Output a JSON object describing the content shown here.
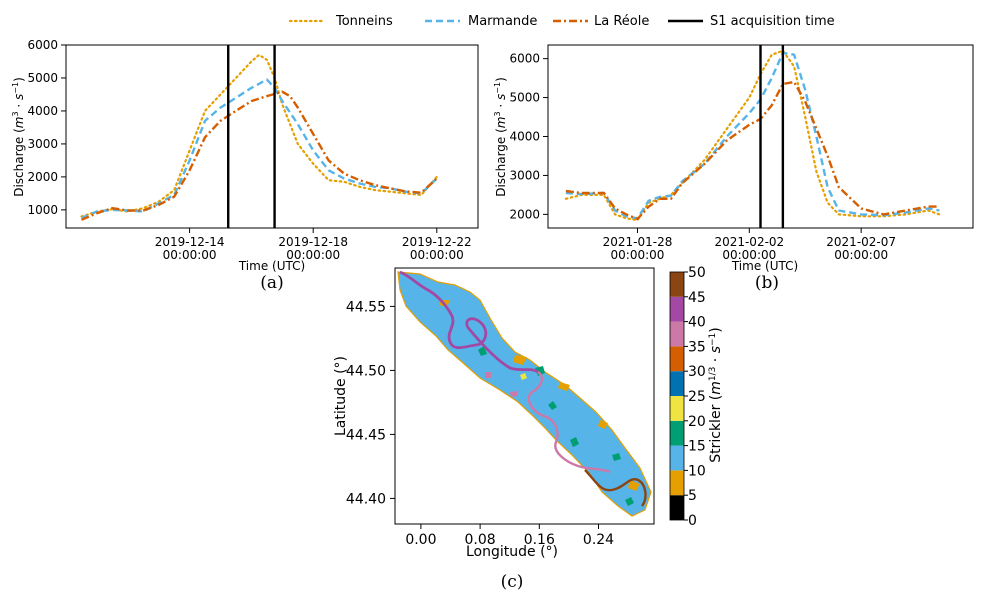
{
  "legend": {
    "entries": [
      {
        "label": "Tonneins",
        "color": "#E69F00",
        "style": "dotted"
      },
      {
        "label": "Marmande",
        "color": "#56B4E9",
        "style": "dashed"
      },
      {
        "label": "La Réole",
        "color": "#D55E00",
        "style": "dashdot"
      },
      {
        "label": "S1 acquisition time",
        "color": "#000000",
        "style": "solid"
      }
    ]
  },
  "chart_data": [
    {
      "type": "line",
      "panel_label": "(a)",
      "xlabel": "Time (UTC)",
      "ylabel": "Discharge (m³ · s⁻¹)",
      "x_ticks": [
        {
          "date": "2019-12-14",
          "time": "00:00:00",
          "day": 4
        },
        {
          "date": "2019-12-18",
          "time": "00:00:00",
          "day": 8
        },
        {
          "date": "2019-12-22",
          "time": "00:00:00",
          "day": 12
        }
      ],
      "xlim": [
        "2019-12-10 00:00",
        "2019-12-23 08:00"
      ],
      "ylim": [
        450,
        6000
      ],
      "y_ticks": [
        1000,
        2000,
        3000,
        4000,
        5000,
        6000
      ],
      "vlines": [
        "2019-12-15 06:00",
        "2019-12-16 18:00"
      ],
      "series": [
        {
          "name": "Tonneins",
          "x": [
            0.5,
            1,
            1.5,
            2,
            2.5,
            3,
            3.5,
            4,
            4.5,
            5,
            5.5,
            6,
            6.25,
            6.5,
            6.75,
            7,
            7.25,
            7.5,
            8,
            8.5,
            9,
            9.5,
            10,
            10.5,
            11,
            11.5,
            12
          ],
          "y": [
            800,
            950,
            1020,
            950,
            1050,
            1250,
            1600,
            2800,
            4000,
            4500,
            5000,
            5500,
            5700,
            5550,
            5000,
            4200,
            3600,
            3000,
            2400,
            1900,
            1850,
            1700,
            1600,
            1550,
            1500,
            1450,
            2000
          ]
        },
        {
          "name": "Marmande",
          "x": [
            0.5,
            1,
            1.5,
            2,
            2.5,
            3,
            3.5,
            4,
            4.5,
            5,
            5.5,
            6,
            6.5,
            6.75,
            7,
            7.5,
            8,
            8.5,
            9,
            9.5,
            10,
            10.5,
            11,
            11.5,
            12
          ],
          "y": [
            750,
            950,
            1000,
            980,
            950,
            1200,
            1450,
            2500,
            3700,
            4100,
            4400,
            4700,
            4950,
            4700,
            4300,
            3600,
            2800,
            2200,
            1950,
            1800,
            1700,
            1650,
            1550,
            1500,
            1950
          ]
        },
        {
          "name": "La Réole",
          "x": [
            0.5,
            1,
            1.5,
            2,
            2.5,
            3,
            3.5,
            4,
            4.5,
            5,
            5.5,
            6,
            6.5,
            7,
            7.25,
            7.5,
            8,
            8.5,
            9,
            9.5,
            10,
            10.5,
            11,
            11.5,
            12
          ],
          "y": [
            700,
            900,
            1050,
            980,
            980,
            1150,
            1400,
            2200,
            3200,
            3700,
            4000,
            4300,
            4450,
            4580,
            4450,
            4100,
            3300,
            2500,
            2100,
            1900,
            1750,
            1650,
            1560,
            1520,
            1950
          ]
        }
      ]
    },
    {
      "type": "line",
      "panel_label": "(b)",
      "xlabel": "Time (UTC)",
      "ylabel": "Discharge (m³ · s⁻¹)",
      "x_ticks": [
        {
          "date": "2021-01-28",
          "time": "00:00:00",
          "day": 4
        },
        {
          "date": "2021-02-02",
          "time": "00:00:00",
          "day": 9
        },
        {
          "date": "2021-02-07",
          "time": "00:00:00",
          "day": 14
        }
      ],
      "xlim": [
        "2021-01-24 00:00",
        "2021-02-12 00:00"
      ],
      "ylim": [
        1650,
        6350
      ],
      "y_ticks": [
        2000,
        3000,
        4000,
        5000,
        6000
      ],
      "vlines": [
        "2021-02-02 12:00",
        "2021-02-03 12:00"
      ],
      "series": [
        {
          "name": "Tonneins",
          "x": [
            0.8,
            1.5,
            2.5,
            3,
            3.5,
            4,
            4.5,
            5,
            5.5,
            6,
            7,
            8,
            9,
            9.5,
            10,
            10.5,
            11,
            11.5,
            12,
            12.5,
            13,
            14,
            15,
            16,
            17,
            17.5
          ],
          "y": [
            2400,
            2500,
            2500,
            2000,
            1900,
            1850,
            2300,
            2400,
            2500,
            2800,
            3400,
            4200,
            5000,
            5600,
            6100,
            6200,
            5800,
            4500,
            3100,
            2300,
            2000,
            1950,
            1950,
            2000,
            2100,
            2000
          ]
        },
        {
          "name": "Marmande",
          "x": [
            0.8,
            1.5,
            2.5,
            3,
            3.5,
            4,
            4.5,
            5,
            5.5,
            6,
            7,
            8,
            9,
            9.5,
            10,
            10.5,
            11,
            11.5,
            12,
            12.5,
            13,
            14,
            15,
            16,
            17,
            17.5
          ],
          "y": [
            2550,
            2520,
            2550,
            2100,
            1950,
            1900,
            2350,
            2450,
            2480,
            2850,
            3300,
            4000,
            4600,
            4950,
            5500,
            6150,
            6100,
            5200,
            4000,
            2700,
            2100,
            2000,
            1980,
            2050,
            2150,
            2100
          ]
        },
        {
          "name": "La Réole",
          "x": [
            0.8,
            1.5,
            2.5,
            3,
            3.5,
            4,
            4.5,
            5,
            5.5,
            6,
            7,
            8,
            9,
            9.5,
            10,
            10.5,
            11,
            11.5,
            12,
            12.5,
            13,
            14,
            15,
            16,
            17,
            17.5
          ],
          "y": [
            2600,
            2550,
            2550,
            2150,
            2000,
            1880,
            2200,
            2400,
            2400,
            2800,
            3300,
            3900,
            4300,
            4450,
            4800,
            5350,
            5400,
            4900,
            4200,
            3500,
            2700,
            2150,
            2000,
            2100,
            2200,
            2200
          ]
        }
      ]
    },
    {
      "type": "heatmap",
      "panel_label": "(c)",
      "xlabel": "Longitude (°)",
      "ylabel": "Latitude (°)",
      "x_ticks": [
        "0.00",
        "0.08",
        "0.16",
        "0.24"
      ],
      "y_ticks": [
        "44.40",
        "44.45",
        "44.50",
        "44.55"
      ],
      "xlim": [
        -0.035,
        0.315
      ],
      "ylim": [
        44.38,
        44.58
      ],
      "colorbar": {
        "label": "Strickler (m¹ᐟ³ · s⁻¹)",
        "ticks": [
          "0",
          "5",
          "10",
          "15",
          "20",
          "25",
          "30",
          "35",
          "40",
          "45",
          "50"
        ],
        "colors": [
          "#000000",
          "#E69F00",
          "#56B4E9",
          "#009E73",
          "#F0E442",
          "#0072B2",
          "#D55E00",
          "#CC79A7",
          "#A349A4",
          "#8B4513"
        ]
      }
    }
  ]
}
